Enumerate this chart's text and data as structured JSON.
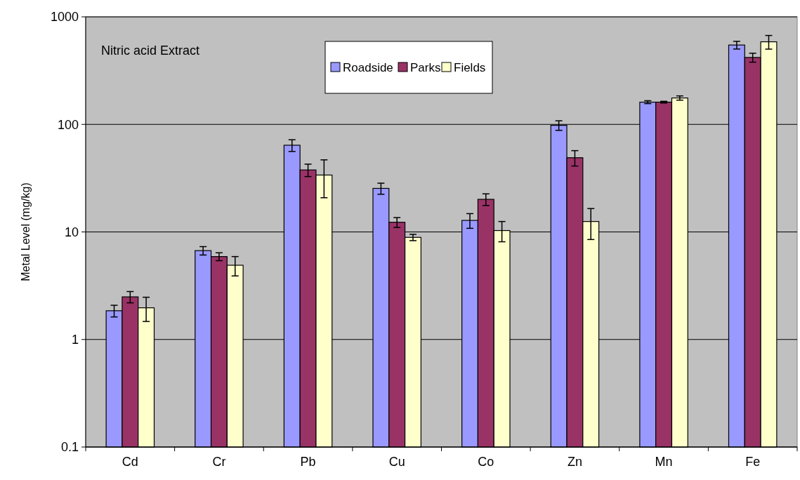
{
  "chart_data": {
    "type": "bar",
    "ylabel": "Metal Level (mg/kg)",
    "annotations": [
      "Nitric acid Extract"
    ],
    "categories": [
      "Cd",
      "Cr",
      "Pb",
      "Cu",
      "Co",
      "Zn",
      "Mn",
      "Fe"
    ],
    "series": [
      {
        "name": "Roadside",
        "color": "#9999ff",
        "values": [
          1.85,
          6.7,
          64,
          25.4,
          12.8,
          98,
          161,
          547
        ],
        "errors": [
          0.23,
          0.6,
          8,
          3,
          2,
          10,
          5,
          45
        ]
      },
      {
        "name": "Parks",
        "color": "#993366",
        "values": [
          2.49,
          5.9,
          37.7,
          12.3,
          20.1,
          49,
          161,
          419
        ],
        "errors": [
          0.3,
          0.5,
          5,
          1.3,
          2.5,
          8,
          3,
          40
        ]
      },
      {
        "name": "Fields",
        "color": "#ffffcc",
        "values": [
          1.97,
          4.9,
          33.8,
          8.9,
          10.3,
          12.5,
          176,
          586
        ],
        "errors": [
          0.5,
          1,
          13,
          0.6,
          2.2,
          4,
          8,
          85
        ]
      }
    ],
    "log": true,
    "ylim": [
      0.1,
      1000
    ],
    "yticks": [
      0.1,
      1,
      10,
      100,
      1000
    ],
    "grid": "y",
    "legend": "top"
  }
}
